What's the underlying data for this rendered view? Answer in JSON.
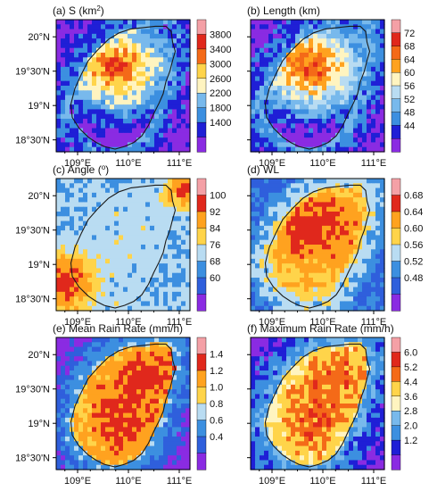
{
  "chart_data": [
    {
      "type": "heatmap",
      "title": "(a) S (km",
      "title_sup": "2",
      "title_tail": ")",
      "xticks": [
        "109°E",
        "110°E",
        "111°E"
      ],
      "yticks": [
        "20°N",
        "19°30'N",
        "19°N",
        "18°30'N"
      ],
      "colorbar_ticks": [
        "3800",
        "3400",
        "3000",
        "2600",
        "2200",
        "1800",
        "1400"
      ],
      "range": [
        1400,
        3800
      ],
      "pattern": "center"
    },
    {
      "type": "heatmap",
      "title": "(b) Length (km)",
      "xticks": [
        "109°E",
        "110°E",
        "111°E"
      ],
      "yticks": [],
      "colorbar_ticks": [
        "72",
        "68",
        "64",
        "60",
        "56",
        "52",
        "48",
        "44"
      ],
      "range": [
        44,
        72
      ],
      "pattern": "center"
    },
    {
      "type": "heatmap",
      "title": "(c) Angle (",
      "title_sup": "o",
      "title_tail": ")",
      "xticks": [
        "109°E",
        "110°E",
        "111°E"
      ],
      "yticks": [
        "20°N",
        "19°30'N",
        "19°N",
        "18°30'N"
      ],
      "colorbar_ticks": [
        "100",
        "92",
        "84",
        "76",
        "68",
        "60"
      ],
      "range": [
        60,
        100
      ],
      "pattern": "corners"
    },
    {
      "type": "heatmap",
      "title": "(d)  WL",
      "xticks": [
        "109°E",
        "110°E",
        "111°E"
      ],
      "yticks": [],
      "colorbar_ticks": [
        "0.68",
        "0.64",
        "0.60",
        "0.56",
        "0.52",
        "0.48"
      ],
      "range": [
        0.48,
        0.68
      ],
      "pattern": "center_strong"
    },
    {
      "type": "heatmap",
      "title": "(e) Mean Rain Rate (mm/h)",
      "xticks": [
        "109°E",
        "110°E",
        "111°E"
      ],
      "yticks": [
        "20°N",
        "19°30'N",
        "19°N",
        "18°30'N"
      ],
      "colorbar_ticks": [
        "1.4",
        "1.2",
        "1.0",
        "0.8",
        "0.6",
        "0.4"
      ],
      "range": [
        0.4,
        1.4
      ],
      "pattern": "island"
    },
    {
      "type": "heatmap",
      "title": "(f) Maximum Rain Rate (mm/h)",
      "xticks": [
        "109°E",
        "110°E",
        "111°E"
      ],
      "yticks": [],
      "colorbar_ticks": [
        "6.0",
        "5.2",
        "4.4",
        "3.6",
        "2.8",
        "2.0",
        "1.2"
      ],
      "range": [
        1.2,
        6.0
      ],
      "pattern": "island_soft"
    }
  ],
  "colors": [
    "#8a2be2",
    "#1f1fd6",
    "#2f5fdc",
    "#3c8fe0",
    "#78b9ec",
    "#b9dcf2",
    "#fff4c0",
    "#ffd44a",
    "#ffa21f",
    "#f46a18",
    "#e0281c",
    "#f4a0a6"
  ]
}
